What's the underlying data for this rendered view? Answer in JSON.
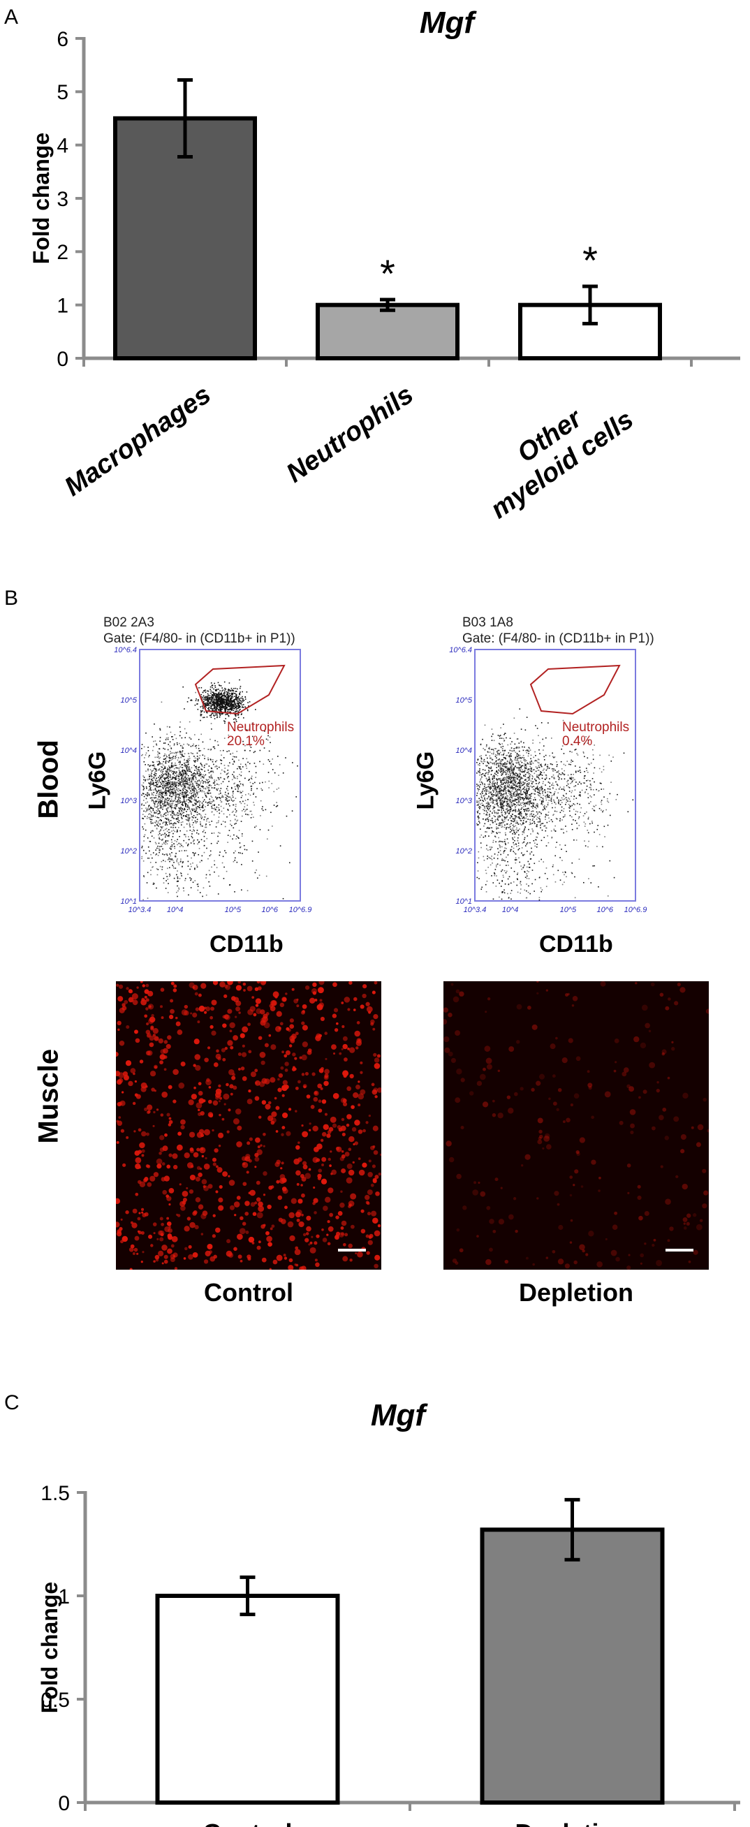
{
  "panel_letters": {
    "a": "A",
    "b": "B",
    "c": "C"
  },
  "chart_data": [
    {
      "panel": "A",
      "type": "bar",
      "title": "Mgf",
      "ylabel": "Fold change",
      "xlabel": "",
      "categories": [
        "Macrophages",
        "Neutrophils",
        "Other myeloid cells"
      ],
      "category_lines": [
        [
          "Macrophages"
        ],
        [
          "Neutrophils"
        ],
        [
          "Other",
          "myeloid cells"
        ]
      ],
      "values": [
        4.5,
        1.0,
        1.0
      ],
      "error": [
        0.72,
        0.1,
        0.35
      ],
      "significance": [
        "",
        "*",
        "*"
      ],
      "bar_colors": [
        "#595959",
        "#a6a6a6",
        "#ffffff"
      ],
      "ylim": [
        0,
        6
      ],
      "yticks": [
        "0",
        "1",
        "2",
        "3",
        "4",
        "5",
        "6"
      ]
    },
    {
      "panel": "C",
      "type": "bar",
      "title": "Mgf",
      "ylabel": "Fold change",
      "xlabel": "",
      "categories": [
        "Control",
        "Depletion"
      ],
      "values": [
        1.0,
        1.32
      ],
      "error": [
        0.09,
        0.145
      ],
      "bar_colors": [
        "#ffffff",
        "#808080"
      ],
      "ylim": [
        0,
        1.5
      ],
      "yticks": [
        "0",
        "0.5",
        "1",
        "1.5"
      ]
    }
  ],
  "panel_b": {
    "row_labels": {
      "blood": "Blood",
      "muscle": "Muscle"
    },
    "conditions": [
      "Control",
      "Depletion"
    ],
    "flow_plots": [
      {
        "sample": "B02 2A3",
        "gate": "Gate: (F4/80- in (CD11b+ in P1))",
        "y_label": "Ly6G",
        "x_label": "CD11b",
        "gate_name": "Neutrophils",
        "gate_percent": "20.1%",
        "x_ticks": [
          "10^3.4",
          "10^4",
          "10^5",
          "10^6",
          "10^6.9"
        ],
        "y_ticks": [
          "10^1",
          "10^2",
          "10^3",
          "10^4",
          "10^5",
          "10^6.4"
        ]
      },
      {
        "sample": "B03 1A8",
        "gate": "Gate: (F4/80- in (CD11b+ in P1))",
        "y_label": "Ly6G",
        "x_label": "CD11b",
        "gate_name": "Neutrophils",
        "gate_percent": "0.4%",
        "x_ticks": [
          "10^3.4",
          "10^4",
          "10^5",
          "10^6",
          "10^6.9"
        ],
        "y_ticks": [
          "10^1",
          "10^2",
          "10^3",
          "10^4",
          "10^5",
          "10^6.4"
        ]
      }
    ],
    "colors": {
      "gate": "#b22222",
      "axis_tick": "#2b2bbd",
      "micro_bg": "#140000",
      "micro_cell": "#e0180c"
    }
  }
}
